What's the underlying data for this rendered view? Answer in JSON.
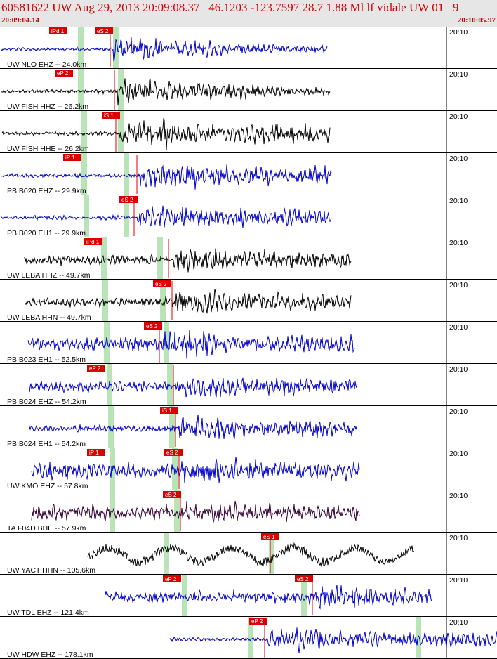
{
  "header": {
    "title": "60581622 UW Aug 29, 2013 20:09:08.37   46.1203 -123.7597 28.7 1.88 Ml lf vidale UW 01   9",
    "start_time": "20:09:04.14",
    "end_time": "20:10:05.97"
  },
  "colors": {
    "red": "#dd0000",
    "blue": "#0000cc",
    "black": "#000000",
    "purple": "#330033",
    "green": "#b8e4b8",
    "header_bg": "#e6e6e6"
  },
  "traces": [
    {
      "label": "UW NLO EHZ -- 24.0km",
      "time": "20:10",
      "color": "blue",
      "phase_labels": [
        "iPd 1",
        "eS 2"
      ]
    },
    {
      "label": "UW FISH HHZ -- 26.2km",
      "time": "20:10",
      "color": "black",
      "phase_labels": [
        "eP 2"
      ]
    },
    {
      "label": "UW FISH HHE -- 26.2km",
      "time": "20:10",
      "color": "black",
      "phase_labels": [
        "iS 1"
      ]
    },
    {
      "label": "PB B020 EHZ -- 29.9km",
      "time": "20:10",
      "color": "blue",
      "phase_labels": [
        "iP 1"
      ]
    },
    {
      "label": "PB B020 EH1 -- 29.9km",
      "time": "20:10",
      "color": "blue",
      "phase_labels": [
        "eS 2"
      ]
    },
    {
      "label": "UW LEBA HHZ -- 49.7km",
      "time": "20:10",
      "color": "black",
      "phase_labels": [
        "iPd 1"
      ]
    },
    {
      "label": "UW LEBA HHN -- 49.7km",
      "time": "20:10",
      "color": "black",
      "phase_labels": [
        "eS 2"
      ]
    },
    {
      "label": "PB B023 EH1 -- 52.5km",
      "time": "20:10",
      "color": "blue",
      "phase_labels": [
        "eS 2"
      ]
    },
    {
      "label": "PB B024 EHZ -- 54.2km",
      "time": "20:10",
      "color": "blue",
      "phase_labels": [
        "eP 2"
      ]
    },
    {
      "label": "PB B024 EH1 -- 54.2km",
      "time": "20:10",
      "color": "blue",
      "phase_labels": [
        "iS 1"
      ]
    },
    {
      "label": "UW KMO EHZ -- 57.8km",
      "time": "20:10",
      "color": "blue",
      "phase_labels": [
        "iP 1",
        "eS 2"
      ]
    },
    {
      "label": "TA F04D BHE -- 57.9km",
      "time": "20:10",
      "color": "purple",
      "phase_labels": [
        "eS 2"
      ]
    },
    {
      "label": "UW YACT HHN -- 105.6km",
      "time": "20:10",
      "color": "black",
      "phase_labels": [
        "eS 1"
      ]
    },
    {
      "label": "UW TDL EHZ -- 121.4km",
      "time": "20:10",
      "color": "blue",
      "phase_labels": [
        "eP 2",
        "eS 2"
      ]
    },
    {
      "label": "UW HDW EHZ -- 178.1km",
      "time": "20:10",
      "color": "blue",
      "phase_labels": [
        "eP 2"
      ]
    }
  ]
}
